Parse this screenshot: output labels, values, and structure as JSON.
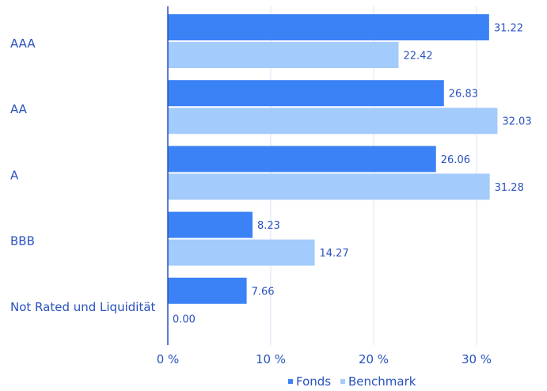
{
  "chart_data": {
    "type": "bar",
    "orientation": "horizontal",
    "categories": [
      "AAA",
      "AA",
      "A",
      "BBB",
      "Not Rated und Liquidität"
    ],
    "series": [
      {
        "name": "Fonds",
        "color": "#3b82f6",
        "values": [
          31.22,
          26.83,
          26.06,
          8.23,
          7.66
        ],
        "labels": [
          "31.22",
          "26.83",
          "26.06",
          "8.23",
          "7.66"
        ]
      },
      {
        "name": "Benchmark",
        "color": "#a3cbfb",
        "values": [
          22.42,
          32.03,
          31.28,
          14.27,
          0.0
        ],
        "labels": [
          "22.42",
          "32.03",
          "31.28",
          "14.27",
          "0.00"
        ]
      }
    ],
    "xlim": [
      0,
      35
    ],
    "xticks": [
      0,
      10,
      20,
      30
    ],
    "xtick_labels": [
      "0 %",
      "10 %",
      "20 %",
      "30 %"
    ],
    "grid": true,
    "legend_position": "bottom-right",
    "text_color": "#2a52be"
  }
}
